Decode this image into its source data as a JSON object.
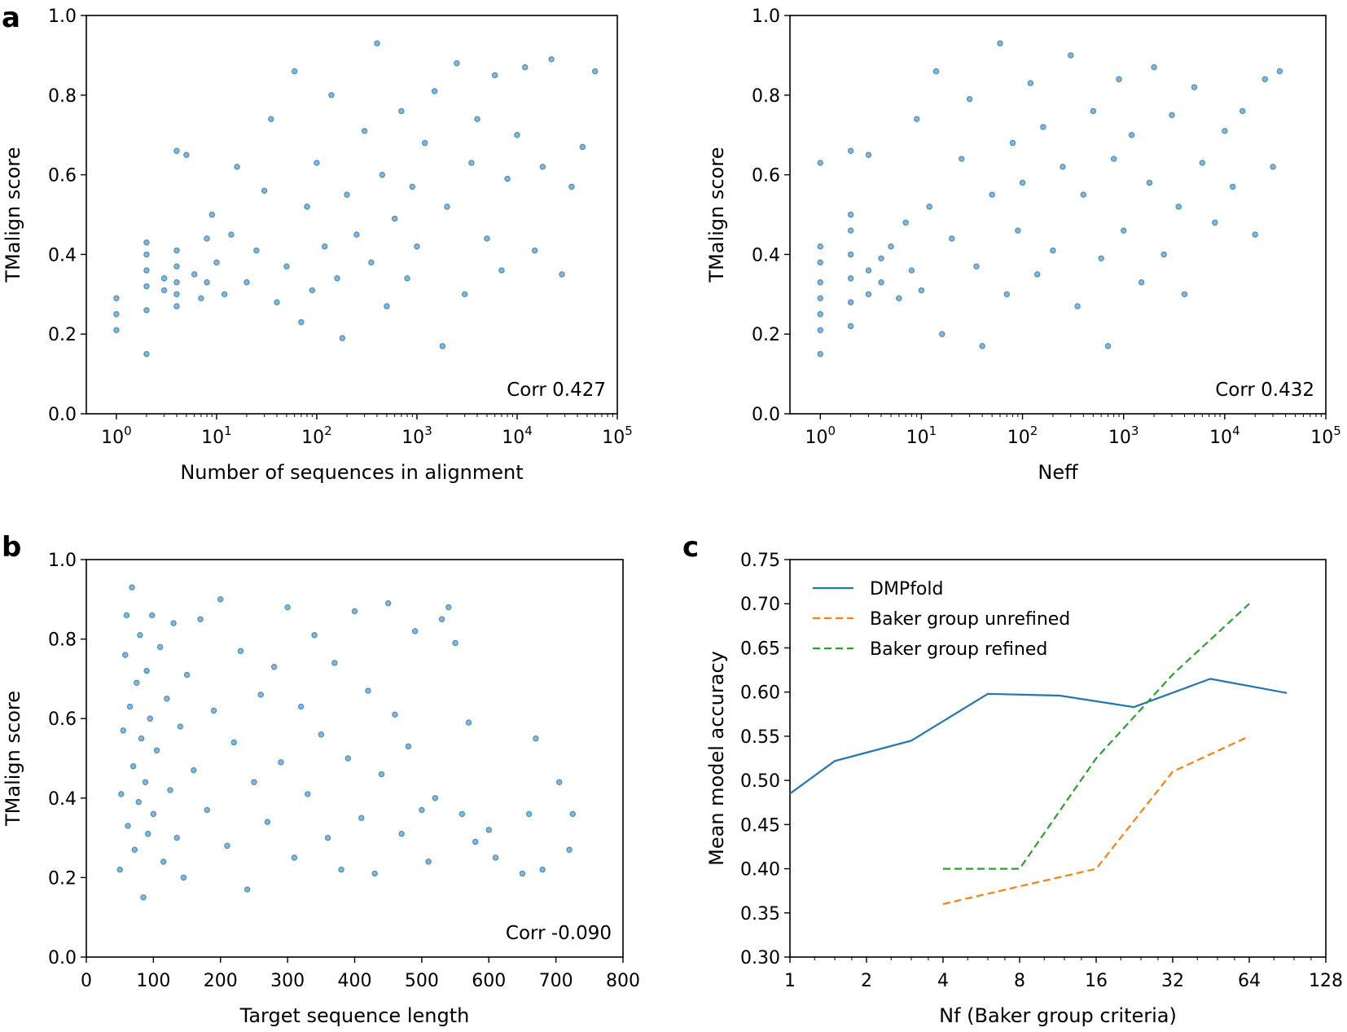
{
  "chart_data": [
    {
      "panel": "a",
      "type": "scatter",
      "xlabel": "Number of sequences in alignment",
      "ylabel": "TMalign score",
      "xscale": "log",
      "xlim": [
        1,
        100000
      ],
      "ylim": [
        0.0,
        1.0
      ],
      "x_ticks": [
        1,
        10,
        100,
        1000,
        10000,
        100000
      ],
      "x_tick_labels": [
        {
          "base": "10",
          "exp": "0"
        },
        {
          "base": "10",
          "exp": "1"
        },
        {
          "base": "10",
          "exp": "2"
        },
        {
          "base": "10",
          "exp": "3"
        },
        {
          "base": "10",
          "exp": "4"
        },
        {
          "base": "10",
          "exp": "5"
        }
      ],
      "y_ticks": [
        0.0,
        0.2,
        0.4,
        0.6,
        0.8,
        1.0
      ],
      "y_tick_labels": [
        "0.0",
        "0.2",
        "0.4",
        "0.6",
        "0.8",
        "1.0"
      ],
      "annotation": "Corr 0.427",
      "points": [
        [
          1,
          0.29
        ],
        [
          1,
          0.25
        ],
        [
          1,
          0.21
        ],
        [
          2,
          0.15
        ],
        [
          2,
          0.26
        ],
        [
          2,
          0.32
        ],
        [
          2,
          0.36
        ],
        [
          2,
          0.4
        ],
        [
          2,
          0.43
        ],
        [
          3,
          0.31
        ],
        [
          3,
          0.34
        ],
        [
          4,
          0.27
        ],
        [
          4,
          0.3
        ],
        [
          4,
          0.33
        ],
        [
          4,
          0.37
        ],
        [
          4,
          0.41
        ],
        [
          4,
          0.66
        ],
        [
          5,
          0.65
        ],
        [
          6,
          0.35
        ],
        [
          7,
          0.29
        ],
        [
          8,
          0.33
        ],
        [
          8,
          0.44
        ],
        [
          9,
          0.5
        ],
        [
          10,
          0.38
        ],
        [
          12,
          0.3
        ],
        [
          14,
          0.45
        ],
        [
          16,
          0.62
        ],
        [
          20,
          0.33
        ],
        [
          25,
          0.41
        ],
        [
          30,
          0.56
        ],
        [
          35,
          0.74
        ],
        [
          40,
          0.28
        ],
        [
          50,
          0.37
        ],
        [
          60,
          0.86
        ],
        [
          70,
          0.23
        ],
        [
          80,
          0.52
        ],
        [
          90,
          0.31
        ],
        [
          100,
          0.63
        ],
        [
          120,
          0.42
        ],
        [
          140,
          0.8
        ],
        [
          160,
          0.34
        ],
        [
          180,
          0.19
        ],
        [
          200,
          0.55
        ],
        [
          250,
          0.45
        ],
        [
          300,
          0.71
        ],
        [
          350,
          0.38
        ],
        [
          400,
          0.93
        ],
        [
          450,
          0.6
        ],
        [
          500,
          0.27
        ],
        [
          600,
          0.49
        ],
        [
          700,
          0.76
        ],
        [
          800,
          0.34
        ],
        [
          900,
          0.57
        ],
        [
          1000,
          0.42
        ],
        [
          1200,
          0.68
        ],
        [
          1500,
          0.81
        ],
        [
          1800,
          0.17
        ],
        [
          2000,
          0.52
        ],
        [
          2500,
          0.88
        ],
        [
          3000,
          0.3
        ],
        [
          3500,
          0.63
        ],
        [
          4000,
          0.74
        ],
        [
          5000,
          0.44
        ],
        [
          6000,
          0.85
        ],
        [
          7000,
          0.36
        ],
        [
          8000,
          0.59
        ],
        [
          10000,
          0.7
        ],
        [
          12000,
          0.87
        ],
        [
          15000,
          0.41
        ],
        [
          18000,
          0.62
        ],
        [
          22000,
          0.89
        ],
        [
          28000,
          0.35
        ],
        [
          35000,
          0.57
        ],
        [
          45000,
          0.67
        ],
        [
          60000,
          0.86
        ]
      ]
    },
    {
      "panel": "",
      "type": "scatter",
      "xlabel": "Neff",
      "ylabel": "TMalign score",
      "xscale": "log",
      "xlim": [
        1,
        100000
      ],
      "ylim": [
        0.0,
        1.0
      ],
      "x_ticks": [
        1,
        10,
        100,
        1000,
        10000,
        100000
      ],
      "x_tick_labels": [
        {
          "base": "10",
          "exp": "0"
        },
        {
          "base": "10",
          "exp": "1"
        },
        {
          "base": "10",
          "exp": "2"
        },
        {
          "base": "10",
          "exp": "3"
        },
        {
          "base": "10",
          "exp": "4"
        },
        {
          "base": "10",
          "exp": "5"
        }
      ],
      "y_ticks": [
        0.0,
        0.2,
        0.4,
        0.6,
        0.8,
        1.0
      ],
      "y_tick_labels": [
        "0.0",
        "0.2",
        "0.4",
        "0.6",
        "0.8",
        "1.0"
      ],
      "annotation": "Corr 0.432",
      "points": [
        [
          1,
          0.15
        ],
        [
          1,
          0.21
        ],
        [
          1,
          0.25
        ],
        [
          1,
          0.29
        ],
        [
          1,
          0.33
        ],
        [
          1,
          0.38
        ],
        [
          1,
          0.42
        ],
        [
          1,
          0.63
        ],
        [
          2,
          0.22
        ],
        [
          2,
          0.28
        ],
        [
          2,
          0.34
        ],
        [
          2,
          0.4
        ],
        [
          2,
          0.46
        ],
        [
          2,
          0.5
        ],
        [
          2,
          0.66
        ],
        [
          3,
          0.3
        ],
        [
          3,
          0.36
        ],
        [
          3,
          0.65
        ],
        [
          4,
          0.33
        ],
        [
          4,
          0.39
        ],
        [
          5,
          0.42
        ],
        [
          6,
          0.29
        ],
        [
          7,
          0.48
        ],
        [
          8,
          0.36
        ],
        [
          9,
          0.74
        ],
        [
          10,
          0.31
        ],
        [
          12,
          0.52
        ],
        [
          14,
          0.86
        ],
        [
          16,
          0.2
        ],
        [
          20,
          0.44
        ],
        [
          25,
          0.64
        ],
        [
          30,
          0.79
        ],
        [
          35,
          0.37
        ],
        [
          40,
          0.17
        ],
        [
          50,
          0.55
        ],
        [
          60,
          0.93
        ],
        [
          70,
          0.3
        ],
        [
          80,
          0.68
        ],
        [
          90,
          0.46
        ],
        [
          100,
          0.58
        ],
        [
          120,
          0.83
        ],
        [
          140,
          0.35
        ],
        [
          160,
          0.72
        ],
        [
          200,
          0.41
        ],
        [
          250,
          0.62
        ],
        [
          300,
          0.9
        ],
        [
          350,
          0.27
        ],
        [
          400,
          0.55
        ],
        [
          500,
          0.76
        ],
        [
          600,
          0.39
        ],
        [
          700,
          0.17
        ],
        [
          800,
          0.64
        ],
        [
          900,
          0.84
        ],
        [
          1000,
          0.46
        ],
        [
          1200,
          0.7
        ],
        [
          1500,
          0.33
        ],
        [
          1800,
          0.58
        ],
        [
          2000,
          0.87
        ],
        [
          2500,
          0.4
        ],
        [
          3000,
          0.75
        ],
        [
          3500,
          0.52
        ],
        [
          4000,
          0.3
        ],
        [
          5000,
          0.82
        ],
        [
          6000,
          0.63
        ],
        [
          8000,
          0.48
        ],
        [
          10000,
          0.71
        ],
        [
          12000,
          0.57
        ],
        [
          15000,
          0.76
        ],
        [
          20000,
          0.45
        ],
        [
          25000,
          0.84
        ],
        [
          30000,
          0.62
        ],
        [
          35000,
          0.86
        ]
      ]
    },
    {
      "panel": "b",
      "type": "scatter",
      "xlabel": "Target sequence length",
      "ylabel": "TMalign score",
      "xlim": [
        0,
        800
      ],
      "ylim": [
        0.0,
        1.0
      ],
      "x_ticks": [
        0,
        100,
        200,
        300,
        400,
        500,
        600,
        700,
        800
      ],
      "x_tick_labels": [
        "0",
        "100",
        "200",
        "300",
        "400",
        "500",
        "600",
        "700",
        "800"
      ],
      "y_ticks": [
        0.0,
        0.2,
        0.4,
        0.6,
        0.8,
        1.0
      ],
      "y_tick_labels": [
        "0.0",
        "0.2",
        "0.4",
        "0.6",
        "0.8",
        "1.0"
      ],
      "annotation": "Corr -0.090",
      "points": [
        [
          50,
          0.22
        ],
        [
          52,
          0.41
        ],
        [
          55,
          0.57
        ],
        [
          58,
          0.76
        ],
        [
          60,
          0.86
        ],
        [
          62,
          0.33
        ],
        [
          65,
          0.63
        ],
        [
          68,
          0.93
        ],
        [
          70,
          0.48
        ],
        [
          72,
          0.27
        ],
        [
          75,
          0.69
        ],
        [
          78,
          0.39
        ],
        [
          80,
          0.81
        ],
        [
          82,
          0.55
        ],
        [
          85,
          0.15
        ],
        [
          88,
          0.44
        ],
        [
          90,
          0.72
        ],
        [
          92,
          0.31
        ],
        [
          95,
          0.6
        ],
        [
          98,
          0.86
        ],
        [
          100,
          0.36
        ],
        [
          105,
          0.52
        ],
        [
          110,
          0.78
        ],
        [
          115,
          0.24
        ],
        [
          120,
          0.65
        ],
        [
          125,
          0.42
        ],
        [
          130,
          0.84
        ],
        [
          135,
          0.3
        ],
        [
          140,
          0.58
        ],
        [
          145,
          0.2
        ],
        [
          150,
          0.71
        ],
        [
          160,
          0.47
        ],
        [
          170,
          0.85
        ],
        [
          180,
          0.37
        ],
        [
          190,
          0.62
        ],
        [
          200,
          0.9
        ],
        [
          210,
          0.28
        ],
        [
          220,
          0.54
        ],
        [
          230,
          0.77
        ],
        [
          240,
          0.17
        ],
        [
          250,
          0.44
        ],
        [
          260,
          0.66
        ],
        [
          270,
          0.34
        ],
        [
          280,
          0.73
        ],
        [
          290,
          0.49
        ],
        [
          300,
          0.88
        ],
        [
          310,
          0.25
        ],
        [
          320,
          0.63
        ],
        [
          330,
          0.41
        ],
        [
          340,
          0.81
        ],
        [
          350,
          0.56
        ],
        [
          360,
          0.3
        ],
        [
          370,
          0.74
        ],
        [
          380,
          0.22
        ],
        [
          390,
          0.5
        ],
        [
          400,
          0.87
        ],
        [
          410,
          0.35
        ],
        [
          420,
          0.67
        ],
        [
          430,
          0.21
        ],
        [
          440,
          0.46
        ],
        [
          450,
          0.89
        ],
        [
          460,
          0.61
        ],
        [
          470,
          0.31
        ],
        [
          480,
          0.53
        ],
        [
          490,
          0.82
        ],
        [
          500,
          0.37
        ],
        [
          510,
          0.24
        ],
        [
          520,
          0.4
        ],
        [
          530,
          0.85
        ],
        [
          540,
          0.88
        ],
        [
          550,
          0.79
        ],
        [
          560,
          0.36
        ],
        [
          570,
          0.59
        ],
        [
          580,
          0.29
        ],
        [
          600,
          0.32
        ],
        [
          610,
          0.25
        ],
        [
          650,
          0.21
        ],
        [
          660,
          0.36
        ],
        [
          670,
          0.55
        ],
        [
          680,
          0.22
        ],
        [
          705,
          0.44
        ],
        [
          720,
          0.27
        ],
        [
          725,
          0.36
        ]
      ]
    },
    {
      "panel": "c",
      "type": "line",
      "xlabel": "Nf (Baker group criteria)",
      "ylabel": "Mean model accuracy",
      "xscale": "log2",
      "xlim": [
        1,
        128
      ],
      "ylim": [
        0.3,
        0.75
      ],
      "x_ticks": [
        1,
        2,
        4,
        8,
        16,
        32,
        64,
        128
      ],
      "x_tick_labels": [
        "1",
        "2",
        "4",
        "8",
        "16",
        "32",
        "64",
        "128"
      ],
      "y_ticks": [
        0.3,
        0.35,
        0.4,
        0.45,
        0.5,
        0.55,
        0.6,
        0.65,
        0.7,
        0.75
      ],
      "y_tick_labels": [
        "0.30",
        "0.35",
        "0.40",
        "0.45",
        "0.50",
        "0.55",
        "0.60",
        "0.65",
        "0.70",
        "0.75"
      ],
      "legend_position": "top-left",
      "series": [
        {
          "name": "DMPfold",
          "color": "#1f77b4",
          "dash": "solid",
          "x": [
            1,
            1.5,
            3,
            6,
            11.5,
            22.5,
            45,
            90
          ],
          "values": [
            0.485,
            0.522,
            0.545,
            0.598,
            0.596,
            0.583,
            0.615,
            0.599
          ]
        },
        {
          "name": "Baker group unrefined",
          "color": "#ff7f0e",
          "dash": "dashed",
          "x": [
            4,
            8,
            16,
            32,
            64
          ],
          "values": [
            0.36,
            0.38,
            0.4,
            0.51,
            0.55
          ]
        },
        {
          "name": "Baker group refined",
          "color": "#2ca02c",
          "dash": "dashed",
          "x": [
            4,
            8,
            16,
            32,
            64
          ],
          "values": [
            0.4,
            0.4,
            0.525,
            0.62,
            0.7
          ]
        }
      ]
    }
  ]
}
